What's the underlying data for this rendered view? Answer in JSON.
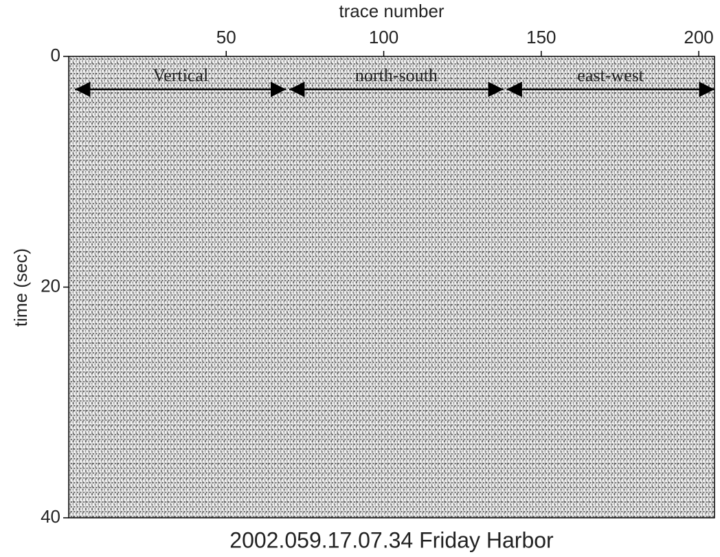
{
  "chart_data": {
    "type": "seismogram",
    "title": "2002.059.17.07.34 Friday Harbor",
    "x_label": "trace number",
    "y_label": "time (sec)",
    "xlim": [
      0,
      205
    ],
    "xticks": [
      50,
      100,
      150,
      200
    ],
    "ylim": [
      0,
      40
    ],
    "yticks": [
      0,
      20,
      40
    ],
    "y_inverted": true,
    "x_axis_position": "top",
    "annotations": [
      {
        "text": "Vertical",
        "x": [
          2,
          69
        ]
      },
      {
        "text": "north-south",
        "x": [
          70,
          138
        ]
      },
      {
        "text": "east-west",
        "x": [
          139,
          205
        ]
      }
    ]
  }
}
